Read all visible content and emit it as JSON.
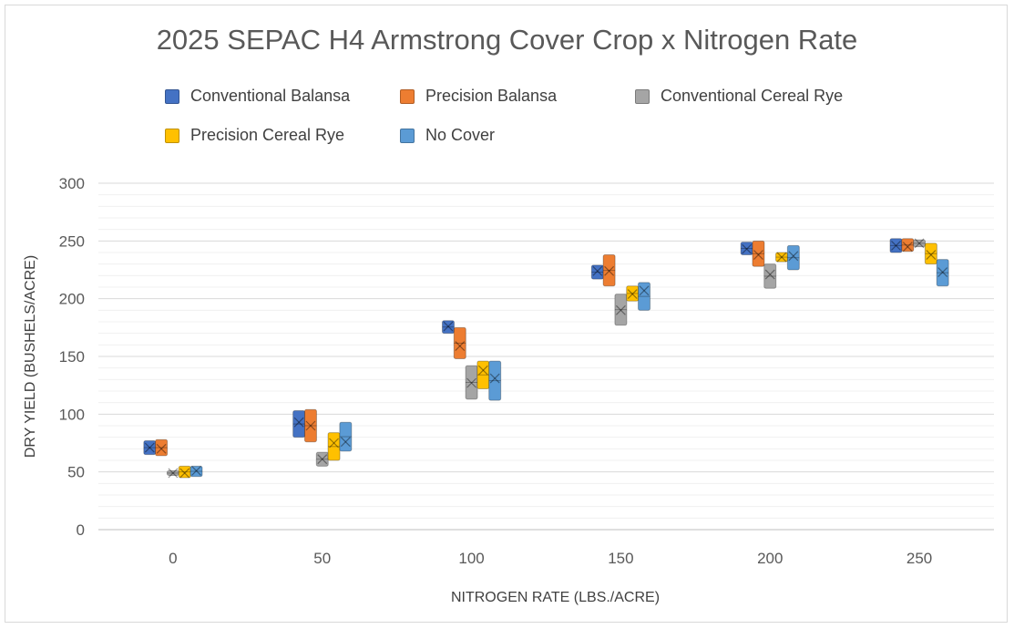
{
  "chart_data": {
    "type": "box",
    "title": "2025 SEPAC H4 Armstrong Cover Crop x Nitrogen Rate",
    "xlabel": "NITROGEN RATE (LBS./ACRE)",
    "ylabel": "DRY YIELD (BUSHELS/ACRE)",
    "categories": [
      "0",
      "50",
      "100",
      "150",
      "200",
      "250"
    ],
    "ylim": [
      0,
      300
    ],
    "yticks": [
      0,
      50,
      100,
      150,
      200,
      250,
      300
    ],
    "gridlines": true,
    "legend_position": "top",
    "series": [
      {
        "name": "Conventional Balansa",
        "color": "#4472c4",
        "boxes": [
          {
            "low": 65,
            "high": 77,
            "mean": 71
          },
          {
            "low": 80,
            "high": 103,
            "mean": 93
          },
          {
            "low": 170,
            "high": 181,
            "mean": 176
          },
          {
            "low": 217,
            "high": 229,
            "mean": 224
          },
          {
            "low": 238,
            "high": 249,
            "mean": 243
          },
          {
            "low": 240,
            "high": 252,
            "mean": 246
          }
        ]
      },
      {
        "name": "Precision Balansa",
        "color": "#ed7d31",
        "boxes": [
          {
            "low": 64,
            "high": 78,
            "mean": 70
          },
          {
            "low": 76,
            "high": 104,
            "mean": 90
          },
          {
            "low": 148,
            "high": 175,
            "mean": 159
          },
          {
            "low": 211,
            "high": 238,
            "mean": 224
          },
          {
            "low": 228,
            "high": 250,
            "mean": 238
          },
          {
            "low": 241,
            "high": 252,
            "mean": 245
          }
        ]
      },
      {
        "name": "Conventional Cereal Rye",
        "color": "#a5a5a5",
        "boxes": [
          {
            "low": 47,
            "high": 51,
            "mean": 49
          },
          {
            "low": 55,
            "high": 67,
            "mean": 61
          },
          {
            "low": 113,
            "high": 142,
            "mean": 127
          },
          {
            "low": 177,
            "high": 204,
            "mean": 190
          },
          {
            "low": 209,
            "high": 230,
            "mean": 221
          },
          {
            "low": 245,
            "high": 251,
            "mean": 248
          }
        ]
      },
      {
        "name": "Precision Cereal Rye",
        "color": "#ffc000",
        "boxes": [
          {
            "low": 45,
            "high": 55,
            "mean": 49
          },
          {
            "low": 60,
            "high": 84,
            "mean": 75
          },
          {
            "low": 122,
            "high": 146,
            "mean": 138
          },
          {
            "low": 198,
            "high": 211,
            "mean": 204
          },
          {
            "low": 232,
            "high": 240,
            "mean": 236
          },
          {
            "low": 230,
            "high": 248,
            "mean": 238
          }
        ]
      },
      {
        "name": "No Cover",
        "color": "#5b9bd5",
        "boxes": [
          {
            "low": 46,
            "high": 55,
            "mean": 51
          },
          {
            "low": 68,
            "high": 93,
            "mean": 76
          },
          {
            "low": 112,
            "high": 146,
            "mean": 131
          },
          {
            "low": 190,
            "high": 214,
            "mean": 207
          },
          {
            "low": 225,
            "high": 246,
            "mean": 237
          },
          {
            "low": 211,
            "high": 234,
            "mean": 223
          }
        ]
      }
    ]
  }
}
